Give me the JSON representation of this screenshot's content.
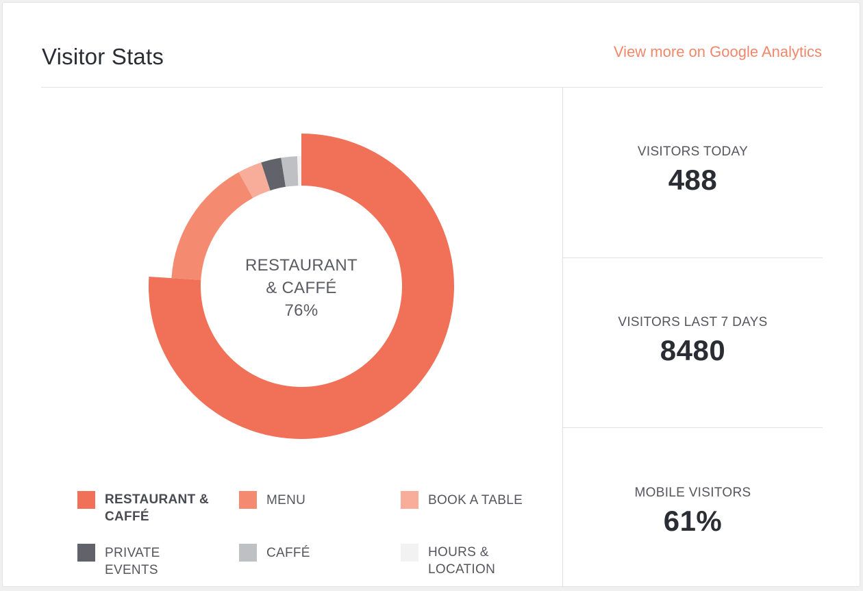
{
  "header": {
    "title": "Visitor Stats",
    "link_label": "View more on Google Analytics"
  },
  "chart_data": {
    "type": "pie",
    "variant": "donut",
    "center": {
      "line1": "RESTAURANT",
      "line2": "& CAFFÉ",
      "line3": "76%"
    },
    "slices": [
      {
        "label": "RESTAURANT & CAFFÉ",
        "value": 76,
        "color": "#f07058",
        "active": true
      },
      {
        "label": "MENU",
        "value": 16,
        "color": "#f48b70"
      },
      {
        "label": "BOOK A TABLE",
        "value": 3,
        "color": "#f8ac9a"
      },
      {
        "label": "PRIVATE EVENTS",
        "value": 2.5,
        "color": "#62636a"
      },
      {
        "label": "CAFFÉ",
        "value": 2,
        "color": "#bfc0c4"
      },
      {
        "label": "HOURS & LOCATION",
        "value": 0.5,
        "color": "#f2f2f3"
      }
    ]
  },
  "legend": {
    "row1": [
      "RESTAURANT & CAFFÉ",
      "MENU",
      "BOOK A TABLE"
    ],
    "row2": [
      "PRIVATE EVENTS",
      "CAFFÉ",
      "HOURS & LOCATION"
    ]
  },
  "stats": [
    {
      "label": "VISITORS TODAY",
      "value": "488"
    },
    {
      "label": "VISITORS LAST 7 DAYS",
      "value": "8480"
    },
    {
      "label": "MOBILE VISITORS",
      "value": "61%"
    }
  ]
}
